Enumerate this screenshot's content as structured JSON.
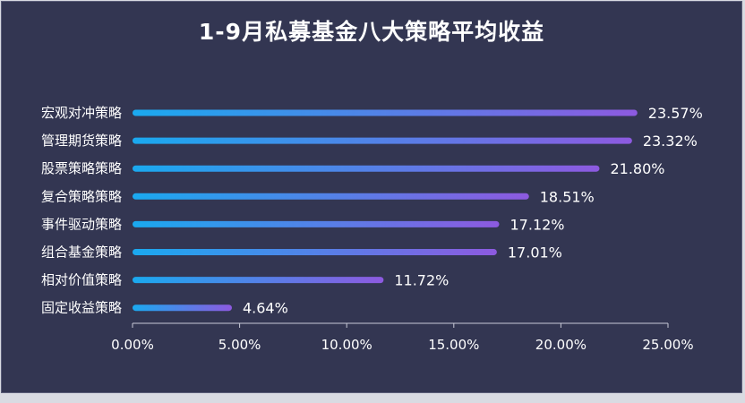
{
  "title": "1-9月私募基金八大策略平均收益",
  "colors": {
    "background": "#333652",
    "bar_start": "#1aa9ef",
    "bar_end": "#8d5ae0",
    "axis": "#c9cbd8",
    "text": "#ffffff"
  },
  "chart_data": {
    "type": "bar",
    "orientation": "horizontal",
    "title": "1-9月私募基金八大策略平均收益",
    "categories": [
      "宏观对冲策略",
      "管理期货策略",
      "股票策略策略",
      "复合策略策略",
      "事件驱动策略",
      "组合基金策略",
      "相对价值策略",
      "固定收益策略"
    ],
    "values": [
      23.57,
      23.32,
      21.8,
      18.51,
      17.12,
      17.01,
      11.72,
      4.64
    ],
    "value_labels": [
      "23.57%",
      "23.32%",
      "21.80%",
      "18.51%",
      "17.12%",
      "17.01%",
      "11.72%",
      "4.64%"
    ],
    "xlim": [
      0,
      25
    ],
    "x_ticks": [
      0,
      5,
      10,
      15,
      20,
      25
    ],
    "x_tick_labels": [
      "0.00%",
      "5.00%",
      "10.00%",
      "15.00%",
      "20.00%",
      "25.00%"
    ],
    "grid": false,
    "legend": "none"
  }
}
